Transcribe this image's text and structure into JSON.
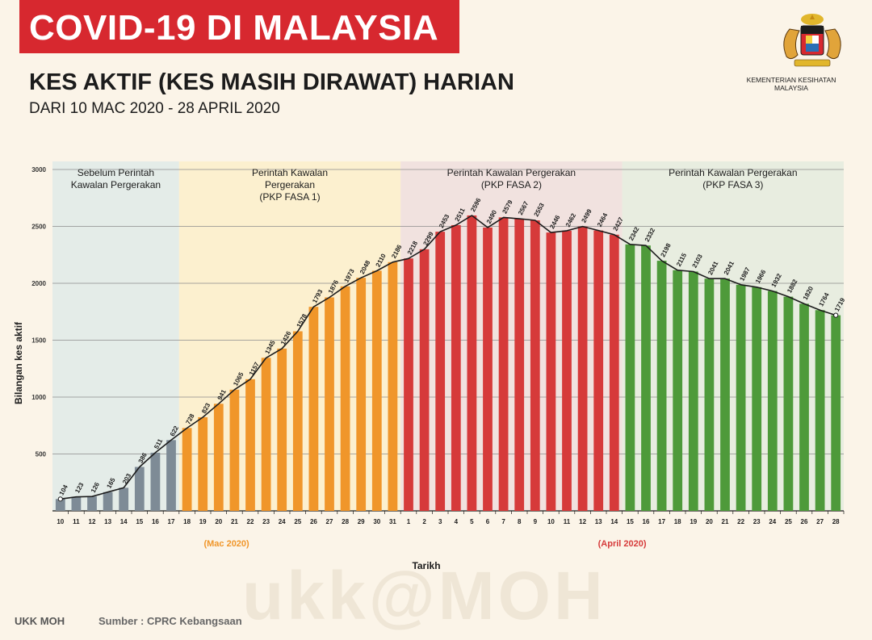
{
  "header": {
    "banner": "COVID-19 DI MALAYSIA",
    "title": "KES AKTIF (KES MASIH DIRAWAT) HARIAN",
    "subtitle": "DARI 10 MAC 2020 - 28 APRIL 2020",
    "ministry": "KEMENTERIAN KESIHATAN MALAYSIA",
    "crest_icon": "malaysia-coat-of-arms-icon"
  },
  "footer": {
    "credit": "UKK MOH",
    "source": "Sumber : CPRC Kebangsaan",
    "watermark": "ukk@MOH"
  },
  "colors": {
    "banner": "#d7282f",
    "grey": "#7e8b96",
    "orange": "#f0962a",
    "red": "#d63a3a",
    "green": "#4e9a3a",
    "phase_grey_bg": "#e4ece8",
    "phase_orange_bg": "#fcf0cf",
    "phase_red_bg": "#f1e2df",
    "phase_green_bg": "#e8ede0"
  },
  "chart_data": {
    "type": "bar",
    "ylabel": "Bilangan kes aktif",
    "xlabel": "Tarikh",
    "ylim": [
      0,
      3000
    ],
    "y_ticks": [
      500,
      1000,
      1500,
      2000,
      2500,
      3000
    ],
    "grid": true,
    "categories": [
      "10",
      "11",
      "12",
      "13",
      "14",
      "15",
      "16",
      "17",
      "18",
      "19",
      "20",
      "21",
      "22",
      "23",
      "24",
      "25",
      "26",
      "27",
      "28",
      "29",
      "30",
      "31",
      "1",
      "2",
      "3",
      "4",
      "5",
      "6",
      "7",
      "8",
      "9",
      "10",
      "11",
      "12",
      "13",
      "14",
      "15",
      "16",
      "17",
      "18",
      "19",
      "20",
      "21",
      "22",
      "23",
      "24",
      "25",
      "26",
      "27",
      "28"
    ],
    "values": [
      104,
      123,
      126,
      165,
      203,
      386,
      511,
      622,
      728,
      823,
      941,
      1065,
      1157,
      1345,
      1426,
      1578,
      1793,
      1876,
      1973,
      2048,
      2110,
      2186,
      2218,
      2299,
      2453,
      2511,
      2596,
      2490,
      2579,
      2567,
      2553,
      2446,
      2462,
      2499,
      2464,
      2427,
      2342,
      2332,
      2198,
      2115,
      2103,
      2041,
      2041,
      1987,
      1966,
      1932,
      1882,
      1820,
      1764,
      1719
    ],
    "trend_line": true,
    "month_labels": [
      {
        "label": "(Mac 2020)",
        "from": 0,
        "to": 21
      },
      {
        "label": "(April 2020)",
        "from": 22,
        "to": 49
      }
    ],
    "phases": [
      {
        "name": "Sebelum Perintah Kawalan Pergerakan",
        "lines": [
          "Sebelum Perintah",
          "Kawalan Pergerakan"
        ],
        "from": 0,
        "to": 7,
        "color_key": "grey"
      },
      {
        "name": "Perintah Kawalan Pergerakan (PKP FASA 1)",
        "lines": [
          "Perintah Kawalan",
          "Pergerakan",
          "(PKP FASA 1)"
        ],
        "from": 8,
        "to": 21,
        "color_key": "orange"
      },
      {
        "name": "Perintah Kawalan Pergerakan (PKP FASA 2)",
        "lines": [
          "Perintah Kawalan Pergerakan",
          "(PKP FASA 2)"
        ],
        "from": 22,
        "to": 35,
        "color_key": "red"
      },
      {
        "name": "Perintah Kawalan Pergerakan (PKP FASA 3)",
        "lines": [
          "Perintah Kawalan Pergerakan",
          "(PKP FASA 3)"
        ],
        "from": 36,
        "to": 49,
        "color_key": "green"
      }
    ]
  }
}
